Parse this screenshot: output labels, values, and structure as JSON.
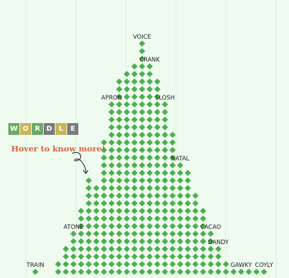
{
  "chart_data": {
    "type": "scatter",
    "title": "",
    "xlabel": "",
    "ylabel": "",
    "columns": [
      {
        "count": 1
      },
      {
        "count": 0
      },
      {
        "count": 0
      },
      {
        "count": 2
      },
      {
        "count": 4
      },
      {
        "count": 6
      },
      {
        "count": 9
      },
      {
        "count": 13
      },
      {
        "count": 12
      },
      {
        "count": 18
      },
      {
        "count": 23
      },
      {
        "count": 26
      },
      {
        "count": 27
      },
      {
        "count": 28
      },
      {
        "count": 31
      },
      {
        "count": 28
      },
      {
        "count": 26
      },
      {
        "count": 23
      },
      {
        "count": 19
      },
      {
        "count": 15
      },
      {
        "count": 14
      },
      {
        "count": 11
      },
      {
        "count": 9
      },
      {
        "count": 6
      },
      {
        "count": 4
      },
      {
        "count": 2
      },
      {
        "count": 1
      },
      {
        "count": 1
      },
      {
        "count": 1
      },
      {
        "count": 1
      },
      {
        "count": 1
      }
    ],
    "annotations": [
      {
        "word": "TRAIN",
        "column": 0
      },
      {
        "word": "ATONE",
        "column": 5
      },
      {
        "word": "APRON",
        "column": 10
      },
      {
        "word": "VOICE",
        "column": 14
      },
      {
        "word": "CRANK",
        "column": 15
      },
      {
        "word": "SLOSH",
        "column": 17
      },
      {
        "word": "NATAL",
        "column": 19
      },
      {
        "word": "CACAO",
        "column": 23
      },
      {
        "word": "DANDY",
        "column": 24
      },
      {
        "word": "GAWKY",
        "column": 27
      },
      {
        "word": "COYLY",
        "column": 30
      }
    ],
    "dot_color": "#4caf50"
  },
  "badge": {
    "letters": [
      "W",
      "O",
      "R",
      "D",
      "L",
      "E"
    ],
    "colors": [
      "#6aaa64",
      "#c9b458",
      "#6aaa64",
      "#787c7e",
      "#c9b458",
      "#787c7e"
    ]
  },
  "hover_note": "Hover to know more!",
  "colors": {
    "background": "#effbef",
    "dot": "#4caf50",
    "note": "#e0623e",
    "arrow": "#333333"
  }
}
